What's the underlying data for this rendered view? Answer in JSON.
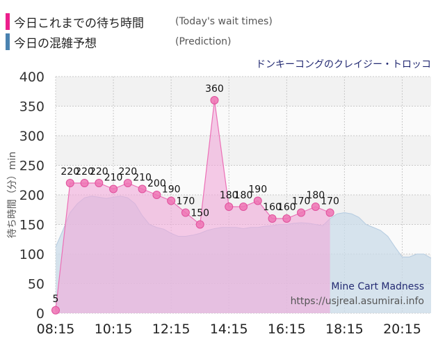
{
  "legend": {
    "today_label": "今日これまでの待ち時間",
    "today_en": "(Today's wait times)",
    "prediction_label": "今日の混雑予想",
    "prediction_en": "(Prediction)"
  },
  "colors": {
    "today": "#ec6fb6",
    "today_marker": "#ee73b4",
    "prediction": "#4a82b0",
    "prediction_fill": "#c9dbe8",
    "today_fill": "#f0a8d8",
    "title_color": "#232a72",
    "plot_band_a": "#f2f2f2",
    "plot_band_b": "#fafafa"
  },
  "chart_data": {
    "type": "area",
    "title": "ドンキーコングのクレイジー・トロッコ",
    "watermark_title": "Mine Cart Madness",
    "watermark_url": "https://usjreal.asumirai.info",
    "ylabel": "待ち時間（分）min",
    "xlabel": "",
    "ylim": [
      0,
      400
    ],
    "xlim": [
      "08:15",
      "21:15"
    ],
    "y_ticks": [
      0,
      50,
      100,
      150,
      200,
      250,
      300,
      350,
      400
    ],
    "x_ticks": [
      "08:15",
      "10:15",
      "12:15",
      "14:15",
      "16:15",
      "18:15",
      "20:15"
    ],
    "grid": true,
    "series": [
      {
        "name": "今日これまでの待ち時間",
        "kind": "line-markers-area",
        "x": [
          "08:15",
          "08:45",
          "09:15",
          "09:45",
          "10:15",
          "10:45",
          "11:15",
          "11:45",
          "12:15",
          "12:45",
          "13:15",
          "13:45",
          "14:15",
          "14:45",
          "15:15",
          "15:45",
          "16:15",
          "16:45",
          "17:15",
          "17:45"
        ],
        "values": [
          5,
          220,
          220,
          220,
          210,
          220,
          210,
          200,
          190,
          170,
          150,
          360,
          180,
          180,
          190,
          160,
          160,
          170,
          180,
          170
        ],
        "labels": [
          "5",
          "220",
          "220",
          "220",
          "210",
          "220",
          "210",
          "200",
          "190",
          "170",
          "150",
          "360",
          "180",
          "180",
          "190",
          "160",
          "160",
          "170",
          "180",
          "170"
        ]
      },
      {
        "name": "今日の混雑予想",
        "kind": "area",
        "x": [
          "08:15",
          "08:30",
          "08:45",
          "09:00",
          "09:15",
          "09:30",
          "09:45",
          "10:00",
          "10:15",
          "10:30",
          "10:45",
          "11:00",
          "11:15",
          "11:30",
          "11:45",
          "12:00",
          "12:15",
          "12:30",
          "12:45",
          "13:00",
          "13:15",
          "13:30",
          "13:45",
          "14:00",
          "14:15",
          "14:30",
          "14:45",
          "15:00",
          "15:15",
          "15:30",
          "15:45",
          "16:00",
          "16:15",
          "16:30",
          "16:45",
          "17:00",
          "17:15",
          "17:30",
          "17:45",
          "18:00",
          "18:15",
          "18:30",
          "18:45",
          "19:00",
          "19:15",
          "19:30",
          "19:45",
          "20:00",
          "20:15",
          "20:30",
          "20:45",
          "21:00",
          "21:15"
        ],
        "values": [
          112,
          140,
          170,
          185,
          195,
          198,
          196,
          194,
          196,
          198,
          195,
          185,
          165,
          150,
          145,
          142,
          135,
          130,
          130,
          132,
          135,
          140,
          143,
          145,
          145,
          145,
          143,
          145,
          145,
          147,
          148,
          150,
          150,
          152,
          153,
          152,
          150,
          148,
          160,
          168,
          170,
          168,
          162,
          150,
          145,
          140,
          130,
          112,
          95,
          95,
          100,
          100,
          93
        ]
      }
    ]
  }
}
